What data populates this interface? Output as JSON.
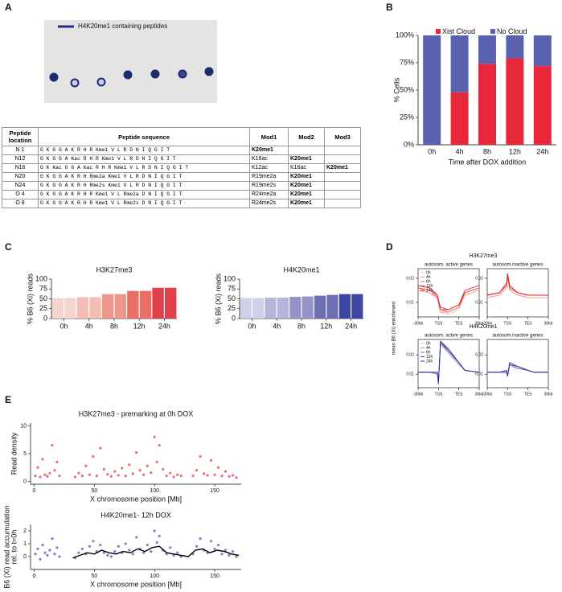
{
  "panel_labels": [
    "A",
    "B",
    "C",
    "D",
    "E"
  ],
  "panel_a": {
    "legend": "H4K20me1 containing peptides",
    "table": {
      "header": [
        "Peptide location",
        "Peptide sequence",
        "Mod1",
        "Mod2",
        "Mod3"
      ],
      "rows": [
        [
          "N 1",
          "G K G G A K R H R Kme1 V L R D N I Q G I T",
          "K20me1"
        ],
        [
          "N12",
          "G K G G A Kac R H R Kme1 V L R D N I Q G I T",
          "K16ac",
          "K20me1"
        ],
        [
          "N16",
          "G K Kac G G A Kac R H R Kme1 V L R D N I Q G I T",
          "K12ac",
          "K16ac",
          "K20me1"
        ],
        [
          "N20",
          "G K G G A K R H Rme2a Kme1 V L R D N I Q G I T",
          "R19me2a",
          "K20me1"
        ],
        [
          "N24",
          "G K G G A K R H Rme2s Kme1 V L R D N I Q G I T",
          "R19me2s",
          "K20me1"
        ],
        [
          "O 4",
          "G K G G A K R H R Kme1 V L Rme2a D N I Q G I T",
          "R24me2a",
          "K20me1"
        ],
        [
          "O 8",
          "G K G G A K R H R Kme1 V L Rme2s D N I Q G I T",
          "R24me2s",
          "K20me1"
        ]
      ]
    }
  },
  "panel_d": {
    "titles": [
      "H3K27me3",
      "H4K20me1"
    ],
    "ylabel": "mean B6 (Xi) enrichment"
  },
  "chart_data": [
    {
      "type": "bar",
      "stacked": true,
      "ylabel": "% Cells",
      "xlabel": "Time after DOX addition",
      "categories": [
        "0h",
        "4h",
        "8h",
        "12h",
        "24h"
      ],
      "series": [
        {
          "name": "Xist Cloud",
          "color": "#e8283a",
          "values": [
            0,
            48,
            74,
            79,
            72
          ]
        },
        {
          "name": "No Cloud",
          "color": "#5a62b0",
          "values": [
            100,
            52,
            26,
            21,
            28
          ]
        }
      ],
      "ylim": [
        0,
        100
      ],
      "yticks": [
        {
          "value": 0,
          "label": "0%"
        },
        {
          "value": 25,
          "label": "25%"
        },
        {
          "value": 50,
          "label": "50%"
        },
        {
          "value": 75,
          "label": "75%"
        },
        {
          "value": 100,
          "label": "100%"
        }
      ],
      "legend": "top"
    },
    {
      "type": "bar",
      "title": "H3K27me3",
      "ylabel": "% B6 (Xi) reads",
      "categories": [
        "0h",
        null,
        "4h",
        null,
        "8h",
        null,
        "12h",
        null,
        "24h",
        null
      ],
      "values": [
        52,
        52,
        54,
        54,
        62,
        62,
        70,
        70,
        78,
        78
      ],
      "colors": [
        "#f6d5cf",
        "#f6d5cf",
        "#f3beb6",
        "#f3beb6",
        "#ee978c",
        "#ee978c",
        "#e86f66",
        "#e86f66",
        "#e0404a",
        "#e0404a"
      ],
      "ylim": [
        0,
        100
      ],
      "yticks": [
        0,
        25,
        50,
        75,
        100
      ]
    },
    {
      "type": "bar",
      "title": "H4K20me1",
      "ylabel": "% B6 (Xi) reads",
      "categories": [
        "0h",
        null,
        "4h",
        null,
        "8h",
        null,
        "12h",
        null,
        "24h",
        null
      ],
      "values": [
        52,
        52,
        53,
        53,
        55,
        56,
        58,
        60,
        62,
        62
      ],
      "colors": [
        "#d0d0ea",
        "#d0d0ea",
        "#b4b4dc",
        "#b4b4dc",
        "#9494c8",
        "#9494c8",
        "#6e6eb4",
        "#6e6eb4",
        "#3e46a0",
        "#3e46a0"
      ],
      "ylim": [
        0,
        100
      ],
      "yticks": [
        0,
        25,
        50,
        75,
        100
      ]
    },
    {
      "type": "line",
      "title": "autosom. active genes",
      "legend": "upper left",
      "x": [
        0,
        0.6,
        0.95,
        1,
        1.1,
        1.5,
        2,
        2.3,
        3
      ],
      "xlim": [
        0,
        3
      ],
      "xticks": [
        {
          "value": 0,
          "label": "-30kb"
        },
        {
          "value": 1,
          "label": "TSS"
        },
        {
          "value": 2,
          "label": "TES"
        },
        {
          "value": 3,
          "label": "30kb"
        }
      ],
      "ylim": [
        0.004,
        0.024
      ],
      "yticks": [
        0.01,
        0.02
      ],
      "series": [
        {
          "name": "0h",
          "color": "#f4c4bc",
          "values": [
            0.015,
            0.014,
            0.011,
            0.009,
            0.006,
            0.005,
            0.007,
            0.013,
            0.015
          ]
        },
        {
          "name": "4h",
          "color": "#f0a090",
          "values": [
            0.015,
            0.014,
            0.012,
            0.01,
            0.006,
            0.006,
            0.008,
            0.013,
            0.015
          ]
        },
        {
          "name": "8h",
          "color": "#ea6d60",
          "values": [
            0.016,
            0.015,
            0.012,
            0.01,
            0.007,
            0.006,
            0.008,
            0.014,
            0.016
          ]
        },
        {
          "name": "12h",
          "color": "#e14040",
          "values": [
            0.016,
            0.015,
            0.013,
            0.011,
            0.007,
            0.007,
            0.009,
            0.014,
            0.016
          ]
        },
        {
          "name": "24h",
          "color": "#d62030",
          "values": [
            0.017,
            0.016,
            0.013,
            0.011,
            0.008,
            0.007,
            0.009,
            0.015,
            0.017
          ]
        }
      ]
    },
    {
      "type": "line",
      "title": "autosom.inactive genes",
      "x": [
        0,
        0.6,
        0.95,
        1,
        1.1,
        1.5,
        2,
        2.3,
        3
      ],
      "xlim": [
        0,
        3
      ],
      "xticks": [
        {
          "value": 0,
          "label": "-30kb"
        },
        {
          "value": 1,
          "label": "TSS"
        },
        {
          "value": 2,
          "label": "TES"
        },
        {
          "value": 3,
          "label": "30kb"
        }
      ],
      "ylim": [
        0.004,
        0.024
      ],
      "yticks": [
        0.01,
        0.02
      ],
      "series": [
        {
          "color": "#f4c4bc",
          "values": [
            0.012,
            0.013,
            0.016,
            0.02,
            0.015,
            0.013,
            0.012,
            0.012,
            0.012
          ]
        },
        {
          "color": "#f0a090",
          "values": [
            0.012,
            0.013,
            0.016,
            0.021,
            0.015,
            0.013,
            0.012,
            0.012,
            0.012
          ]
        },
        {
          "color": "#ea6d60",
          "values": [
            0.013,
            0.014,
            0.017,
            0.021,
            0.016,
            0.014,
            0.013,
            0.013,
            0.013
          ]
        },
        {
          "color": "#e14040",
          "values": [
            0.013,
            0.014,
            0.017,
            0.022,
            0.016,
            0.014,
            0.013,
            0.013,
            0.013
          ]
        },
        {
          "color": "#d62030",
          "values": [
            0.013,
            0.014,
            0.018,
            0.022,
            0.017,
            0.014,
            0.013,
            0.013,
            0.013
          ]
        }
      ]
    },
    {
      "type": "line",
      "title": "autosom. active genes",
      "legend": "upper left",
      "x": [
        0,
        0.6,
        0.95,
        1,
        1.1,
        1.5,
        2,
        2.3,
        3
      ],
      "xlim": [
        0,
        3
      ],
      "xticks": [
        {
          "value": 0,
          "label": "-30kb"
        },
        {
          "value": 1,
          "label": "TSS"
        },
        {
          "value": 2,
          "label": "TES"
        },
        {
          "value": 3,
          "label": "30kb"
        }
      ],
      "ylim": [
        0.003,
        0.028
      ],
      "yticks": [
        0.01,
        0.02
      ],
      "series": [
        {
          "name": "0h",
          "color": "#c8c8e6",
          "values": [
            0.011,
            0.011,
            0.01,
            0.004,
            0.025,
            0.021,
            0.015,
            0.012,
            0.011
          ]
        },
        {
          "name": "4h",
          "color": "#9898cc",
          "values": [
            0.011,
            0.011,
            0.01,
            0.005,
            0.026,
            0.021,
            0.015,
            0.012,
            0.011
          ]
        },
        {
          "name": "8h",
          "color": "#7070b8",
          "values": [
            0.011,
            0.011,
            0.01,
            0.005,
            0.026,
            0.022,
            0.016,
            0.012,
            0.011
          ]
        },
        {
          "name": "12h",
          "color": "#4a4aa4",
          "values": [
            0.011,
            0.011,
            0.011,
            0.005,
            0.027,
            0.022,
            0.016,
            0.012,
            0.011
          ]
        },
        {
          "name": "24h",
          "color": "#2a2e90",
          "values": [
            0.011,
            0.011,
            0.011,
            0.006,
            0.027,
            0.023,
            0.016,
            0.012,
            0.011
          ]
        }
      ]
    },
    {
      "type": "line",
      "title": "autosom.inactive genes",
      "x": [
        0,
        0.6,
        0.95,
        1,
        1.1,
        1.5,
        2,
        2.3,
        3
      ],
      "xlim": [
        0,
        3
      ],
      "xticks": [
        {
          "value": 0,
          "label": "-30kb"
        },
        {
          "value": 1,
          "label": "TSS"
        },
        {
          "value": 2,
          "label": "TES"
        },
        {
          "value": 3,
          "label": "30kb"
        }
      ],
      "ylim": [
        0.003,
        0.028
      ],
      "yticks": [
        0.01,
        0.02
      ],
      "series": [
        {
          "color": "#c8c8e6",
          "values": [
            0.011,
            0.011,
            0.011,
            0.009,
            0.014,
            0.013,
            0.012,
            0.011,
            0.011
          ]
        },
        {
          "color": "#9898cc",
          "values": [
            0.011,
            0.011,
            0.011,
            0.009,
            0.015,
            0.013,
            0.012,
            0.011,
            0.011
          ]
        },
        {
          "color": "#7070b8",
          "values": [
            0.011,
            0.011,
            0.011,
            0.009,
            0.015,
            0.013,
            0.012,
            0.011,
            0.011
          ]
        },
        {
          "color": "#4a4aa4",
          "values": [
            0.011,
            0.011,
            0.011,
            0.009,
            0.015,
            0.014,
            0.012,
            0.011,
            0.011
          ]
        },
        {
          "color": "#2a2e90",
          "values": [
            0.011,
            0.011,
            0.012,
            0.009,
            0.016,
            0.014,
            0.012,
            0.011,
            0.011
          ]
        }
      ]
    },
    {
      "type": "scatter",
      "title": "H3K27me3 - premarking at 0h DOX",
      "ylabel": "Read density",
      "xlabel": "X chromosome position [Mb]",
      "xlim": [
        -3,
        172
      ],
      "xticks": [
        0,
        50,
        100,
        150
      ],
      "ylim": [
        -0.5,
        10.5
      ],
      "yticks": [
        0,
        5,
        10
      ],
      "series": [
        {
          "color": "#e0303c",
          "x": [
            1,
            3,
            5,
            7,
            9,
            11,
            13,
            15,
            17,
            19,
            21,
            34,
            37,
            40,
            43,
            46,
            49,
            52,
            55,
            58,
            61,
            64,
            67,
            70,
            73,
            76,
            79,
            82,
            85,
            88,
            91,
            94,
            97,
            100,
            102,
            104,
            107,
            110,
            113,
            116,
            119,
            122,
            132,
            135,
            138,
            141,
            144,
            147,
            150,
            153,
            156,
            159,
            162,
            165,
            168
          ],
          "values": [
            1.0,
            2.5,
            0.8,
            4.0,
            1.2,
            0.9,
            1.5,
            6.5,
            2.0,
            3.5,
            1.0,
            0.8,
            1.5,
            1.0,
            2.8,
            1.2,
            4.5,
            1.0,
            6.0,
            2.2,
            1.3,
            0.9,
            1.8,
            1.1,
            2.4,
            1.0,
            3.0,
            1.4,
            5.2,
            2.0,
            1.2,
            2.8,
            1.6,
            8.0,
            3.5,
            6.5,
            2.2,
            1.0,
            1.5,
            0.8,
            1.2,
            1.0,
            1.0,
            2.0,
            4.5,
            1.4,
            1.1,
            3.8,
            1.2,
            2.5,
            1.0,
            1.8,
            0.9,
            1.1,
            0.7
          ]
        }
      ]
    },
    {
      "type": "scatter",
      "title": "H4K20me1- 12h DOX",
      "ylabel": [
        "B6 (Xi) read accumulation",
        "rel. to t=0h"
      ],
      "xlabel": "X chromosome position [Mb]",
      "xlim": [
        -3,
        172
      ],
      "xticks": [
        0,
        50,
        100,
        150
      ],
      "ylim": [
        -1,
        2.5
      ],
      "yticks": [
        0,
        1,
        2
      ],
      "series": [
        {
          "color": "#4a4ab0",
          "x": [
            1,
            3,
            5,
            7,
            9,
            11,
            13,
            15,
            17,
            19,
            21,
            34,
            37,
            40,
            43,
            46,
            49,
            52,
            55,
            58,
            61,
            64,
            67,
            70,
            73,
            76,
            79,
            82,
            85,
            88,
            91,
            94,
            97,
            100,
            102,
            104,
            107,
            110,
            113,
            116,
            119,
            122,
            132,
            135,
            138,
            141,
            144,
            147,
            150,
            153,
            156,
            159,
            162,
            165,
            168
          ],
          "values": [
            0.2,
            0.6,
            -0.2,
            0.9,
            0.3,
            0.1,
            0.5,
            1.4,
            0.2,
            0.7,
            0.0,
            -0.1,
            0.3,
            0.6,
            0.2,
            0.8,
            1.2,
            0.4,
            0.9,
            0.3,
            0.1,
            0.0,
            0.4,
            0.8,
            0.3,
            1.0,
            0.5,
            0.2,
            1.5,
            0.6,
            0.3,
            0.9,
            0.4,
            2.0,
            1.1,
            1.6,
            0.5,
            0.2,
            0.7,
            0.1,
            0.3,
            0.0,
            0.2,
            0.8,
            1.4,
            0.5,
            0.3,
            1.2,
            0.6,
            0.9,
            0.2,
            0.5,
            0.1,
            0.4,
            0.0
          ]
        },
        {
          "color": "#000000",
          "mode": "line",
          "x": [
            32,
            38,
            44,
            50,
            56,
            62,
            68,
            74,
            80,
            86,
            92,
            98,
            104,
            110,
            116,
            122,
            128,
            134,
            140,
            146,
            152,
            158,
            164,
            170
          ],
          "values": [
            -0.1,
            0.1,
            0.3,
            0.2,
            0.5,
            0.3,
            0.2,
            0.4,
            0.3,
            0.6,
            0.4,
            0.7,
            0.8,
            0.3,
            0.2,
            0.1,
            0.0,
            0.5,
            0.6,
            0.3,
            0.5,
            0.4,
            0.2,
            0.1
          ]
        }
      ]
    }
  ]
}
